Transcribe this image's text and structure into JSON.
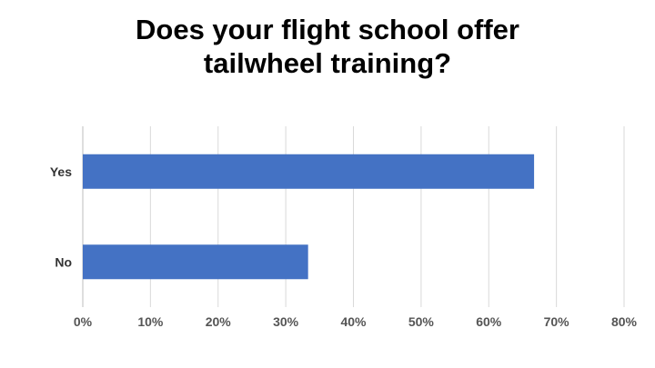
{
  "chart_data": {
    "type": "bar",
    "orientation": "horizontal",
    "title_lines": [
      "Does your flight school offer",
      "tailwheel training?"
    ],
    "categories": [
      "Yes",
      "No"
    ],
    "values": [
      66.7,
      33.3
    ],
    "xlim": [
      0,
      80
    ],
    "xticks": [
      "0%",
      "10%",
      "20%",
      "30%",
      "40%",
      "50%",
      "60%",
      "70%",
      "80%"
    ],
    "xtick_values": [
      0,
      10,
      20,
      30,
      40,
      50,
      60,
      70,
      80
    ],
    "unit": "%",
    "grid": "vertical",
    "legend": "none",
    "colors": {
      "bar": "#4472C4",
      "grid": "#d9d9d9",
      "axis_text": "#555555",
      "category_text": "#333333"
    }
  }
}
